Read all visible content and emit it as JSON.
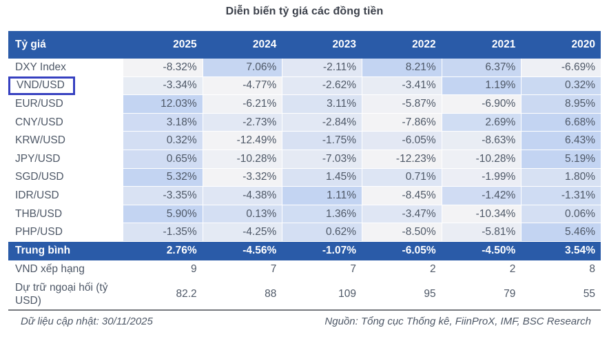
{
  "title": "Diễn biến tỷ giá các đồng tiền",
  "colors": {
    "header_bg": "#2A5BA8",
    "header_text": "#FFFFFF",
    "body_text": "#4D5766",
    "heatmap_min": "#F3F3F5",
    "heatmap_max": "#C3D4F2",
    "highlight_box": "#3640C0",
    "divider": "#75787E"
  },
  "chart_data": {
    "type": "table",
    "title": "Diễn biến tỷ giá các đồng tiền",
    "columns": [
      "Tỷ giá",
      "2025",
      "2024",
      "2023",
      "2022",
      "2021",
      "2020"
    ],
    "rows": [
      {
        "label": "DXY Index",
        "values": [
          "-8.32%",
          "7.06%",
          "-2.11%",
          "8.21%",
          "6.37%",
          "-6.69%"
        ]
      },
      {
        "label": "VND/USD",
        "highlighted": true,
        "values": [
          "-3.34%",
          "-4.77%",
          "-2.62%",
          "-3.41%",
          "1.19%",
          "0.32%"
        ]
      },
      {
        "label": "EUR/USD",
        "values": [
          "12.03%",
          "-6.21%",
          "3.11%",
          "-5.87%",
          "-6.90%",
          "8.95%"
        ]
      },
      {
        "label": "CNY/USD",
        "values": [
          "3.18%",
          "-2.73%",
          "-2.84%",
          "-7.86%",
          "2.69%",
          "6.68%"
        ]
      },
      {
        "label": "KRW/USD",
        "values": [
          "0.32%",
          "-12.49%",
          "-1.75%",
          "-6.05%",
          "-8.63%",
          "6.43%"
        ]
      },
      {
        "label": "JPY/USD",
        "values": [
          "0.65%",
          "-10.28%",
          "-7.03%",
          "-12.23%",
          "-10.28%",
          "5.19%"
        ]
      },
      {
        "label": "SGD/USD",
        "values": [
          "5.32%",
          "-3.32%",
          "1.45%",
          "0.71%",
          "-1.99%",
          "1.80%"
        ]
      },
      {
        "label": "IDR/USD",
        "values": [
          "-3.35%",
          "-4.38%",
          "1.11%",
          "-8.45%",
          "-1.42%",
          "-1.31%"
        ]
      },
      {
        "label": "THB/USD",
        "values": [
          "5.90%",
          "0.13%",
          "1.36%",
          "-3.47%",
          "-10.34%",
          "0.06%"
        ]
      },
      {
        "label": "PHP/USD",
        "values": [
          "-1.35%",
          "-4.25%",
          "0.62%",
          "-8.50%",
          "-5.81%",
          "5.46%"
        ]
      }
    ],
    "summary_row": {
      "label": "Trung bình",
      "values": [
        "2.76%",
        "-4.56%",
        "-1.07%",
        "-6.05%",
        "-4.50%",
        "3.54%"
      ]
    },
    "extra_rows": [
      {
        "label": "VND xếp hạng",
        "values": [
          "9",
          "7",
          "7",
          "2",
          "2",
          "8"
        ]
      },
      {
        "label": "Dự trữ ngoại hối (tỷ USD)",
        "values": [
          "82.2",
          "88",
          "109",
          "95",
          "79",
          "55"
        ]
      }
    ],
    "heatmap_note": "per-row two-color scale: row minimum = light gray, row maximum = light blue"
  },
  "footer": {
    "left": "Dữ liệu cập nhật: 30/11/2025",
    "right": "Nguồn: Tổng cục Thống kê, FiinProX, IMF, BSC Research"
  }
}
